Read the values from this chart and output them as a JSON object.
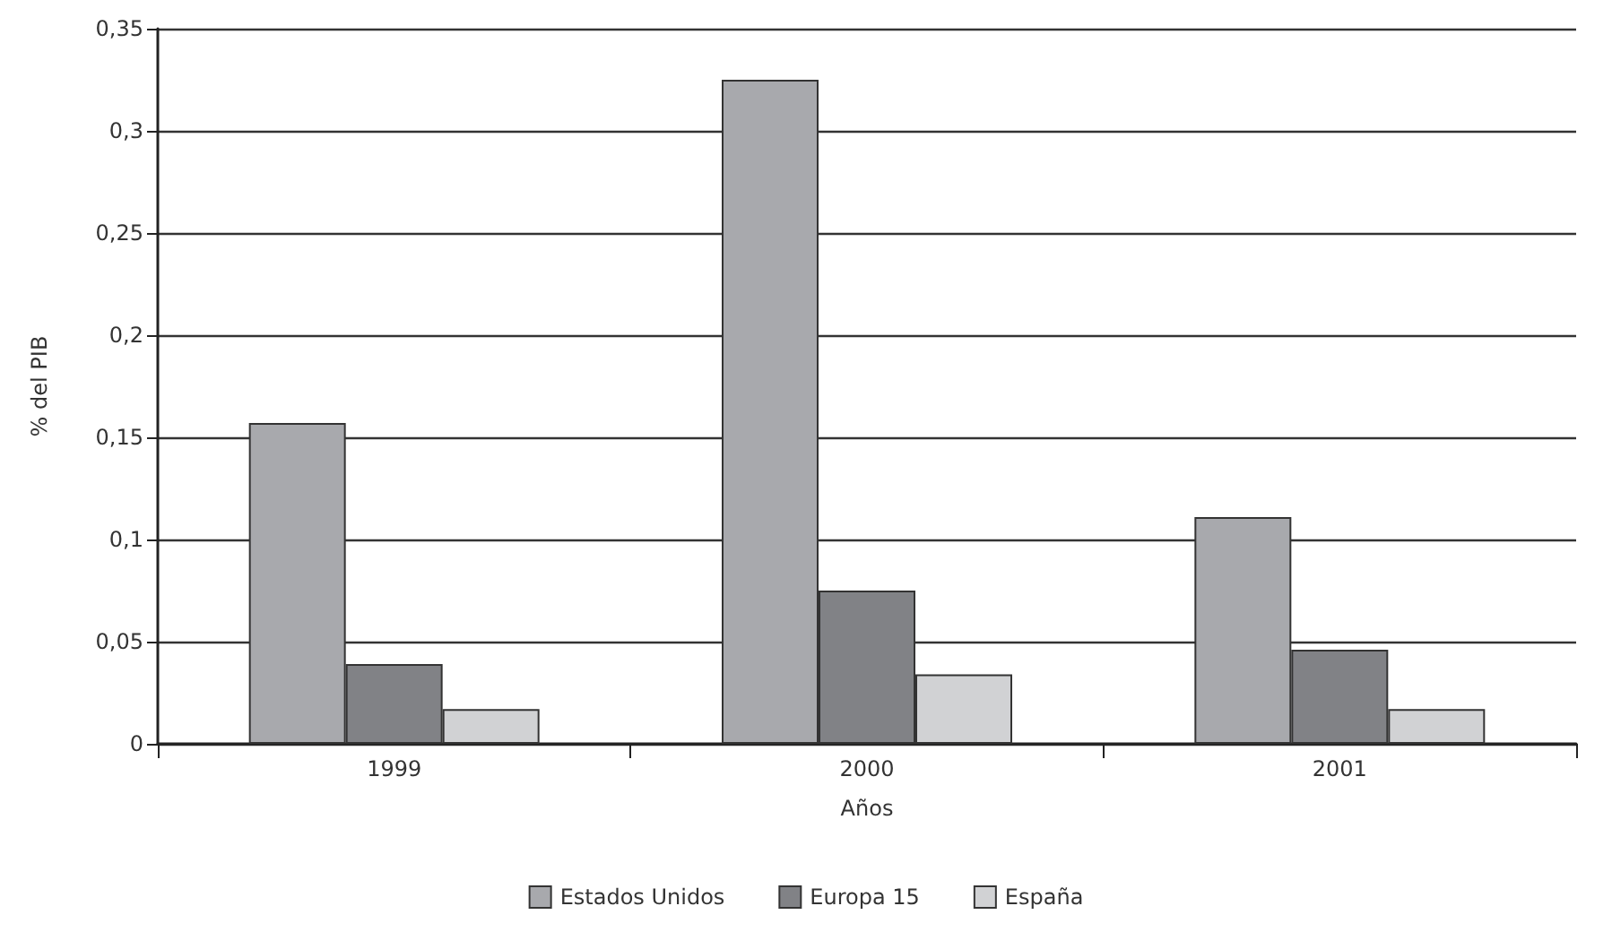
{
  "chart_data": {
    "type": "bar",
    "xlabel": "Años",
    "ylabel": "% del PIB",
    "categories": [
      "1999",
      "2000",
      "2001"
    ],
    "series": [
      {
        "name": "Estados Unidos",
        "color": "#a8a9ad",
        "values": [
          0.157,
          0.325,
          0.111
        ]
      },
      {
        "name": "Europa 15",
        "color": "#818286",
        "values": [
          0.039,
          0.075,
          0.046
        ]
      },
      {
        "name": "España",
        "color": "#d1d2d4",
        "values": [
          0.017,
          0.034,
          0.017
        ]
      }
    ],
    "ylim": [
      0,
      0.35
    ],
    "yticks": [
      {
        "value": 0,
        "label": "0"
      },
      {
        "value": 0.05,
        "label": "0,05"
      },
      {
        "value": 0.1,
        "label": "0,1"
      },
      {
        "value": 0.15,
        "label": "0,15"
      },
      {
        "value": 0.2,
        "label": "0,2"
      },
      {
        "value": 0.25,
        "label": "0,25"
      },
      {
        "value": 0.3,
        "label": "0,3"
      },
      {
        "value": 0.35,
        "label": "0,35"
      }
    ],
    "grid": "y",
    "legend": "bottom"
  }
}
